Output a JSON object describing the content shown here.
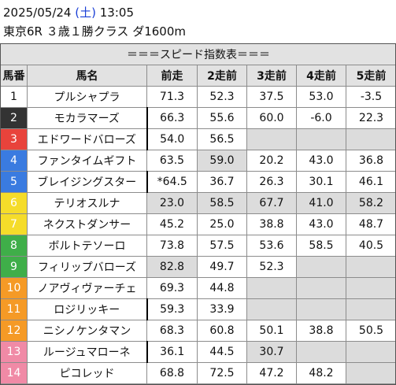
{
  "header": {
    "date": "2025/05/24",
    "weekday_open": "(",
    "weekday": "土",
    "weekday_close": ")",
    "time": "13:05",
    "race": "東京6R ３歳１勝クラス ダ1600m"
  },
  "table": {
    "banner": "＝＝＝スピード指数表＝＝＝",
    "columns": [
      "馬番",
      "馬名",
      "前走",
      "2走前",
      "3走前",
      "4走前",
      "5走前"
    ],
    "waku_colors": {
      "1": {
        "bg": "#ffffff",
        "fg": "#111111"
      },
      "2": {
        "bg": "#333333",
        "fg": "#ffffff"
      },
      "3": {
        "bg": "#e8433b",
        "fg": "#ffffff"
      },
      "4": {
        "bg": "#3a7be0",
        "fg": "#ffffff"
      },
      "5": {
        "bg": "#f5dc2a",
        "fg": "#ffffff"
      },
      "6": {
        "bg": "#3fae49",
        "fg": "#ffffff"
      },
      "7": {
        "bg": "#f59a26",
        "fg": "#ffffff"
      },
      "8": {
        "bg": "#f08aa6",
        "fg": "#ffffff"
      }
    },
    "rows": [
      {
        "no": "1",
        "waku": "1",
        "name": "プルシャプラ",
        "cells": [
          "71.3",
          "52.3",
          "37.5",
          "53.0",
          "-3.5"
        ],
        "shade": [
          false,
          false,
          false,
          false,
          false
        ],
        "name_border": false
      },
      {
        "no": "2",
        "waku": "2",
        "name": "モカラマーズ",
        "cells": [
          "66.3",
          "55.6",
          "60.0",
          "-6.0",
          "22.3"
        ],
        "shade": [
          false,
          false,
          false,
          false,
          false
        ],
        "name_border": true
      },
      {
        "no": "3",
        "waku": "3",
        "name": "エドワードバローズ",
        "cells": [
          "54.0",
          "56.5",
          "",
          "",
          ""
        ],
        "shade": [
          false,
          false,
          true,
          true,
          true
        ],
        "name_border": true
      },
      {
        "no": "4",
        "waku": "4",
        "name": "ファンタイムギフト",
        "cells": [
          "63.5",
          "59.0",
          "20.2",
          "43.0",
          "36.8"
        ],
        "shade": [
          false,
          true,
          false,
          false,
          false
        ],
        "name_border": false
      },
      {
        "no": "5",
        "waku": "4",
        "name": "ブレイジングスター",
        "cells": [
          "*64.5",
          "36.7",
          "26.3",
          "30.1",
          "46.1"
        ],
        "shade": [
          false,
          false,
          false,
          false,
          false
        ],
        "name_border": true
      },
      {
        "no": "6",
        "waku": "5",
        "name": "テリオスルナ",
        "cells": [
          "23.0",
          "58.5",
          "67.7",
          "41.0",
          "58.2"
        ],
        "shade": [
          true,
          true,
          true,
          true,
          true
        ],
        "name_border": false
      },
      {
        "no": "7",
        "waku": "5",
        "name": "ネクストダンサー",
        "cells": [
          "45.2",
          "25.0",
          "38.8",
          "43.0",
          "48.7"
        ],
        "shade": [
          false,
          false,
          false,
          false,
          false
        ],
        "name_border": false
      },
      {
        "no": "8",
        "waku": "6",
        "name": "ボルトテソーロ",
        "cells": [
          "73.8",
          "57.5",
          "53.6",
          "58.5",
          "40.5"
        ],
        "shade": [
          false,
          false,
          false,
          false,
          false
        ],
        "name_border": false
      },
      {
        "no": "9",
        "waku": "6",
        "name": "フィリップバローズ",
        "cells": [
          "82.8",
          "49.7",
          "52.3",
          "",
          ""
        ],
        "shade": [
          true,
          false,
          false,
          true,
          true
        ],
        "name_border": false
      },
      {
        "no": "10",
        "waku": "7",
        "name": "ノアヴィヴァーチェ",
        "cells": [
          "69.3",
          "44.8",
          "",
          "",
          ""
        ],
        "shade": [
          false,
          false,
          true,
          true,
          true
        ],
        "name_border": false
      },
      {
        "no": "11",
        "waku": "7",
        "name": "ロジリッキー",
        "cells": [
          "59.3",
          "33.9",
          "",
          "",
          ""
        ],
        "shade": [
          false,
          false,
          true,
          true,
          true
        ],
        "name_border": true
      },
      {
        "no": "12",
        "waku": "7",
        "name": "ニシノケンタマン",
        "cells": [
          "68.3",
          "60.8",
          "50.1",
          "38.8",
          "50.5"
        ],
        "shade": [
          false,
          false,
          false,
          false,
          false
        ],
        "name_border": false
      },
      {
        "no": "13",
        "waku": "8",
        "name": "ルージュマローネ",
        "cells": [
          "36.1",
          "44.5",
          "30.7",
          "",
          ""
        ],
        "shade": [
          false,
          false,
          true,
          true,
          true
        ],
        "name_border": true
      },
      {
        "no": "14",
        "waku": "8",
        "name": "ピコレッド",
        "cells": [
          "68.8",
          "72.5",
          "47.2",
          "48.2",
          ""
        ],
        "shade": [
          false,
          false,
          false,
          false,
          true
        ],
        "name_border": false
      }
    ]
  }
}
